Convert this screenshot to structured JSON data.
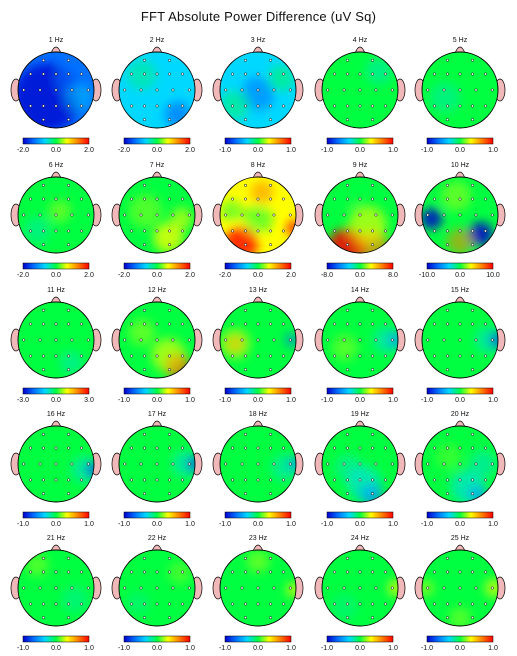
{
  "title": "FFT Absolute Power Difference  (uV Sq)",
  "colors": {
    "scale": [
      "#0000cc",
      "#0070ff",
      "#00d8ff",
      "#00ff40",
      "#ffff00",
      "#ff8000",
      "#ff0000"
    ],
    "head_outline": "#000000",
    "nose_ear_fill": "#f0b8b8",
    "electrode": "#000000"
  },
  "chart_data": [
    {
      "type": "heatmap",
      "title": "1 Hz",
      "colorbar_ticks": [
        "-2.0",
        "0.0",
        "2.0"
      ]
    },
    {
      "type": "heatmap",
      "title": "2 Hz",
      "colorbar_ticks": [
        "-2.0",
        "0.0",
        "2.0"
      ]
    },
    {
      "type": "heatmap",
      "title": "3 Hz",
      "colorbar_ticks": [
        "-1.0",
        "0.0",
        "1.0"
      ]
    },
    {
      "type": "heatmap",
      "title": "4 Hz",
      "colorbar_ticks": [
        "-1.0",
        "0.0",
        "1.0"
      ]
    },
    {
      "type": "heatmap",
      "title": "5 Hz",
      "colorbar_ticks": [
        "-1.0",
        "0.0",
        "1.0"
      ]
    },
    {
      "type": "heatmap",
      "title": "6 Hz",
      "colorbar_ticks": [
        "-2.0",
        "0.0",
        "2.0"
      ]
    },
    {
      "type": "heatmap",
      "title": "7 Hz",
      "colorbar_ticks": [
        "-2.0",
        "0.0",
        "2.0"
      ]
    },
    {
      "type": "heatmap",
      "title": "8 Hz",
      "colorbar_ticks": [
        "-2.0",
        "0.0",
        "2.0"
      ]
    },
    {
      "type": "heatmap",
      "title": "9 Hz",
      "colorbar_ticks": [
        "-8.0",
        "0.0",
        "8.0"
      ]
    },
    {
      "type": "heatmap",
      "title": "10 Hz",
      "colorbar_ticks": [
        "-10.0",
        "0.0",
        "10.0"
      ]
    },
    {
      "type": "heatmap",
      "title": "11 Hz",
      "colorbar_ticks": [
        "-3.0",
        "0.0",
        "3.0"
      ]
    },
    {
      "type": "heatmap",
      "title": "12 Hz",
      "colorbar_ticks": [
        "-1.0",
        "0.0",
        "1.0"
      ]
    },
    {
      "type": "heatmap",
      "title": "13 Hz",
      "colorbar_ticks": [
        "-1.0",
        "0.0",
        "1.0"
      ]
    },
    {
      "type": "heatmap",
      "title": "14 Hz",
      "colorbar_ticks": [
        "-1.0",
        "0.0",
        "1.0"
      ]
    },
    {
      "type": "heatmap",
      "title": "15 Hz",
      "colorbar_ticks": [
        "-1.0",
        "0.0",
        "1.0"
      ]
    },
    {
      "type": "heatmap",
      "title": "16 Hz",
      "colorbar_ticks": [
        "-1.0",
        "0.0",
        "1.0"
      ]
    },
    {
      "type": "heatmap",
      "title": "17 Hz",
      "colorbar_ticks": [
        "-1.0",
        "0.0",
        "1.0"
      ]
    },
    {
      "type": "heatmap",
      "title": "18 Hz",
      "colorbar_ticks": [
        "-1.0",
        "0.0",
        "1.0"
      ]
    },
    {
      "type": "heatmap",
      "title": "19 Hz",
      "colorbar_ticks": [
        "-1.0",
        "0.0",
        "1.0"
      ]
    },
    {
      "type": "heatmap",
      "title": "20 Hz",
      "colorbar_ticks": [
        "-1.0",
        "0.0",
        "1.0"
      ]
    },
    {
      "type": "heatmap",
      "title": "21 Hz",
      "colorbar_ticks": [
        "-1.0",
        "0.0",
        "1.0"
      ]
    },
    {
      "type": "heatmap",
      "title": "22 Hz",
      "colorbar_ticks": [
        "-1.0",
        "0.0",
        "1.0"
      ]
    },
    {
      "type": "heatmap",
      "title": "23 Hz",
      "colorbar_ticks": [
        "-1.0",
        "0.0",
        "1.0"
      ]
    },
    {
      "type": "heatmap",
      "title": "24 Hz",
      "colorbar_ticks": [
        "-1.0",
        "0.0",
        "1.0"
      ]
    },
    {
      "type": "heatmap",
      "title": "25 Hz",
      "colorbar_ticks": [
        "-1.0",
        "0.0",
        "1.0"
      ]
    }
  ]
}
